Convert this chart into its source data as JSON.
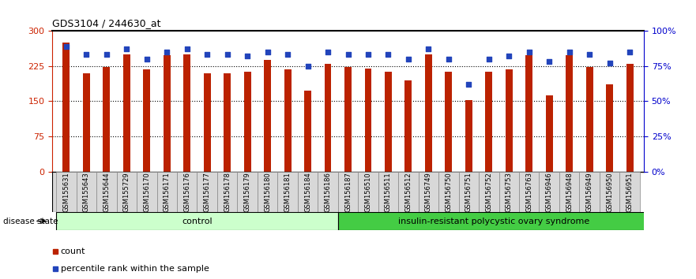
{
  "title": "GDS3104 / 244630_at",
  "samples": [
    "GSM155631",
    "GSM155643",
    "GSM155644",
    "GSM155729",
    "GSM156170",
    "GSM156171",
    "GSM156176",
    "GSM156177",
    "GSM156178",
    "GSM156179",
    "GSM156180",
    "GSM156181",
    "GSM156184",
    "GSM156186",
    "GSM156187",
    "GSM156510",
    "GSM156511",
    "GSM156512",
    "GSM156749",
    "GSM156750",
    "GSM156751",
    "GSM156752",
    "GSM156753",
    "GSM156763",
    "GSM156946",
    "GSM156948",
    "GSM156949",
    "GSM156950",
    "GSM156951"
  ],
  "counts": [
    275,
    210,
    222,
    250,
    218,
    248,
    250,
    210,
    210,
    213,
    238,
    218,
    172,
    230,
    222,
    220,
    213,
    195,
    250,
    212,
    152,
    213,
    218,
    248,
    163,
    248,
    222,
    185,
    230
  ],
  "percentiles": [
    89,
    83,
    83,
    87,
    80,
    85,
    87,
    83,
    83,
    82,
    85,
    83,
    75,
    85,
    83,
    83,
    83,
    80,
    87,
    80,
    62,
    80,
    82,
    85,
    78,
    85,
    83,
    77,
    85
  ],
  "control_count": 14,
  "group1_label": "control",
  "group2_label": "insulin-resistant polycystic ovary syndrome",
  "bar_color": "#bb2200",
  "percentile_color": "#2244bb",
  "ylim_left": [
    0,
    300
  ],
  "yticks_left": [
    0,
    75,
    150,
    225,
    300
  ],
  "ylim_right": [
    0,
    100
  ],
  "yticks_right": [
    0,
    25,
    50,
    75,
    100
  ],
  "ylabel_left_color": "#cc2200",
  "ylabel_right_color": "#0000cc",
  "bg_color": "#ffffff",
  "xlabel_bg": "#d8d8d8",
  "group1_color": "#ccffcc",
  "group2_color": "#44cc44",
  "disease_state_label": "disease state",
  "legend_count_label": "count",
  "legend_pct_label": "percentile rank within the sample"
}
